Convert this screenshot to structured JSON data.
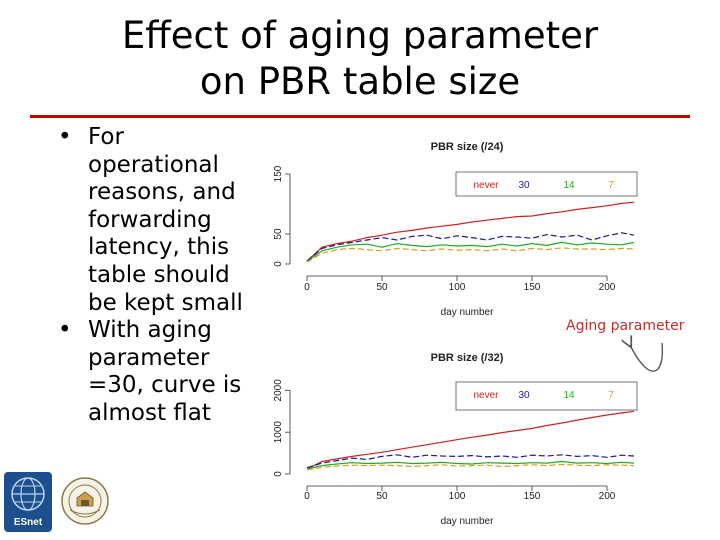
{
  "slide": {
    "title_line1": "Effect of aging parameter",
    "title_line2": "on PBR table size",
    "bullets": [
      "For operational reasons, and forwarding latency, this table should be kept small",
      "With aging parameter =30, curve is almost flat"
    ],
    "bullet_lines": [
      [
        "For",
        "operational",
        "reasons, and",
        "forwarding",
        "latency, this",
        "table should",
        "be kept small"
      ],
      [
        "With aging",
        "parameter",
        "=30, curve is",
        "almost flat"
      ]
    ],
    "bullet_symbol": "•",
    "annotation": "Aging parameter",
    "logo_left_text": "ESnet",
    "colors": {
      "rule": "#cc0000",
      "annotation": "#c0302a"
    }
  },
  "chart_data": [
    {
      "type": "line",
      "title": "PBR size (/24)",
      "xlabel": "day number",
      "ylabel": "",
      "x_ticks": [
        0,
        50,
        100,
        150,
        200
      ],
      "y_ticks": [
        0,
        50,
        150
      ],
      "xlim": [
        0,
        220
      ],
      "ylim": [
        0,
        160
      ],
      "legend": [
        "never",
        "30",
        "14",
        "7"
      ],
      "legend_position": "top-right",
      "grid": false,
      "x": [
        0,
        10,
        20,
        30,
        40,
        50,
        60,
        70,
        80,
        90,
        100,
        110,
        120,
        130,
        140,
        150,
        160,
        170,
        180,
        190,
        200,
        210,
        218
      ],
      "series": [
        {
          "name": "never",
          "color": "#cc2222",
          "values": [
            5,
            28,
            34,
            38,
            44,
            48,
            53,
            56,
            60,
            63,
            66,
            70,
            73,
            76,
            79,
            80,
            84,
            87,
            91,
            94,
            97,
            101,
            103
          ]
        },
        {
          "name": "30",
          "color": "#1a1a99",
          "values": [
            5,
            26,
            32,
            36,
            40,
            44,
            40,
            46,
            48,
            42,
            47,
            44,
            40,
            46,
            45,
            43,
            49,
            45,
            48,
            40,
            47,
            52,
            48
          ]
        },
        {
          "name": "14",
          "color": "#22aa22",
          "values": [
            4,
            22,
            28,
            32,
            33,
            28,
            34,
            31,
            29,
            32,
            30,
            31,
            29,
            33,
            30,
            34,
            31,
            36,
            32,
            35,
            33,
            32,
            36
          ]
        },
        {
          "name": "7",
          "color": "#d4a020",
          "values": [
            3,
            18,
            24,
            26,
            24,
            22,
            26,
            24,
            22,
            25,
            23,
            24,
            22,
            25,
            22,
            26,
            24,
            27,
            25,
            25,
            24,
            26,
            25
          ]
        }
      ]
    },
    {
      "type": "line",
      "title": "PBR size (/32)",
      "xlabel": "day number",
      "ylabel": "",
      "x_ticks": [
        0,
        50,
        100,
        150,
        200
      ],
      "y_ticks": [
        0,
        1000,
        2000
      ],
      "xlim": [
        0,
        220
      ],
      "ylim": [
        0,
        2200
      ],
      "legend": [
        "never",
        "30",
        "14",
        "7"
      ],
      "legend_position": "top-right",
      "grid": false,
      "x": [
        0,
        10,
        20,
        30,
        40,
        50,
        60,
        70,
        80,
        90,
        100,
        110,
        120,
        130,
        140,
        150,
        160,
        170,
        180,
        190,
        200,
        210,
        218
      ],
      "series": [
        {
          "name": "never",
          "color": "#cc2222",
          "values": [
            120,
            300,
            360,
            420,
            470,
            520,
            580,
            640,
            700,
            760,
            820,
            880,
            930,
            990,
            1040,
            1090,
            1160,
            1220,
            1290,
            1350,
            1410,
            1460,
            1500
          ]
        },
        {
          "name": "30",
          "color": "#1a1a99",
          "values": [
            150,
            260,
            320,
            380,
            350,
            420,
            460,
            400,
            450,
            430,
            420,
            440,
            410,
            430,
            400,
            450,
            430,
            460,
            420,
            440,
            400,
            450,
            430
          ]
        },
        {
          "name": "14",
          "color": "#22aa22",
          "values": [
            120,
            200,
            240,
            270,
            250,
            260,
            280,
            250,
            260,
            280,
            250,
            240,
            270,
            260,
            250,
            270,
            260,
            300,
            260,
            270,
            250,
            280,
            260
          ]
        },
        {
          "name": "7",
          "color": "#d4a020",
          "values": [
            100,
            160,
            190,
            210,
            200,
            210,
            200,
            180,
            200,
            220,
            190,
            200,
            210,
            180,
            200,
            220,
            200,
            230,
            210,
            200,
            220,
            210,
            200
          ]
        }
      ]
    }
  ]
}
